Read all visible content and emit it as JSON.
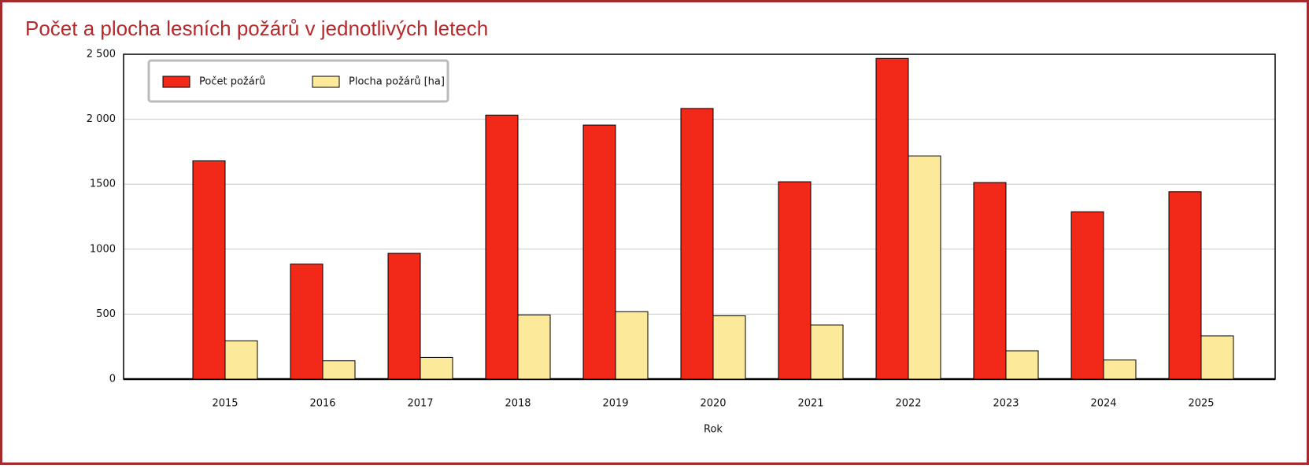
{
  "chart_data": {
    "type": "bar",
    "title": "Počet a plocha lesních požárů v jednotlivých letech",
    "x_label": "Rok",
    "categories": [
      "2015",
      "2016",
      "2017",
      "2018",
      "2019",
      "2020",
      "2021",
      "2022",
      "2023",
      "2024",
      "2025"
    ],
    "series": [
      {
        "name": "Počet požárů",
        "color": "#f22818",
        "values": [
          1680,
          885,
          968,
          2032,
          1955,
          2083,
          1519,
          2468,
          1513,
          1288,
          1442
        ]
      },
      {
        "name": "Plocha požárů [ha]",
        "color": "#fde99a",
        "values": [
          295,
          141,
          167,
          494,
          519,
          487,
          417,
          1718,
          218,
          147,
          333
        ]
      }
    ],
    "ylim": [
      0,
      2500
    ],
    "yticks": [
      0,
      500,
      {
        "value": 1000,
        "label": "1000"
      },
      {
        "value": 1500,
        "label": "1500"
      },
      {
        "value": 2000,
        "label": "2 000"
      },
      {
        "value": 2500,
        "label": "2 500"
      }
    ],
    "grid": true,
    "legend": "top-left"
  }
}
